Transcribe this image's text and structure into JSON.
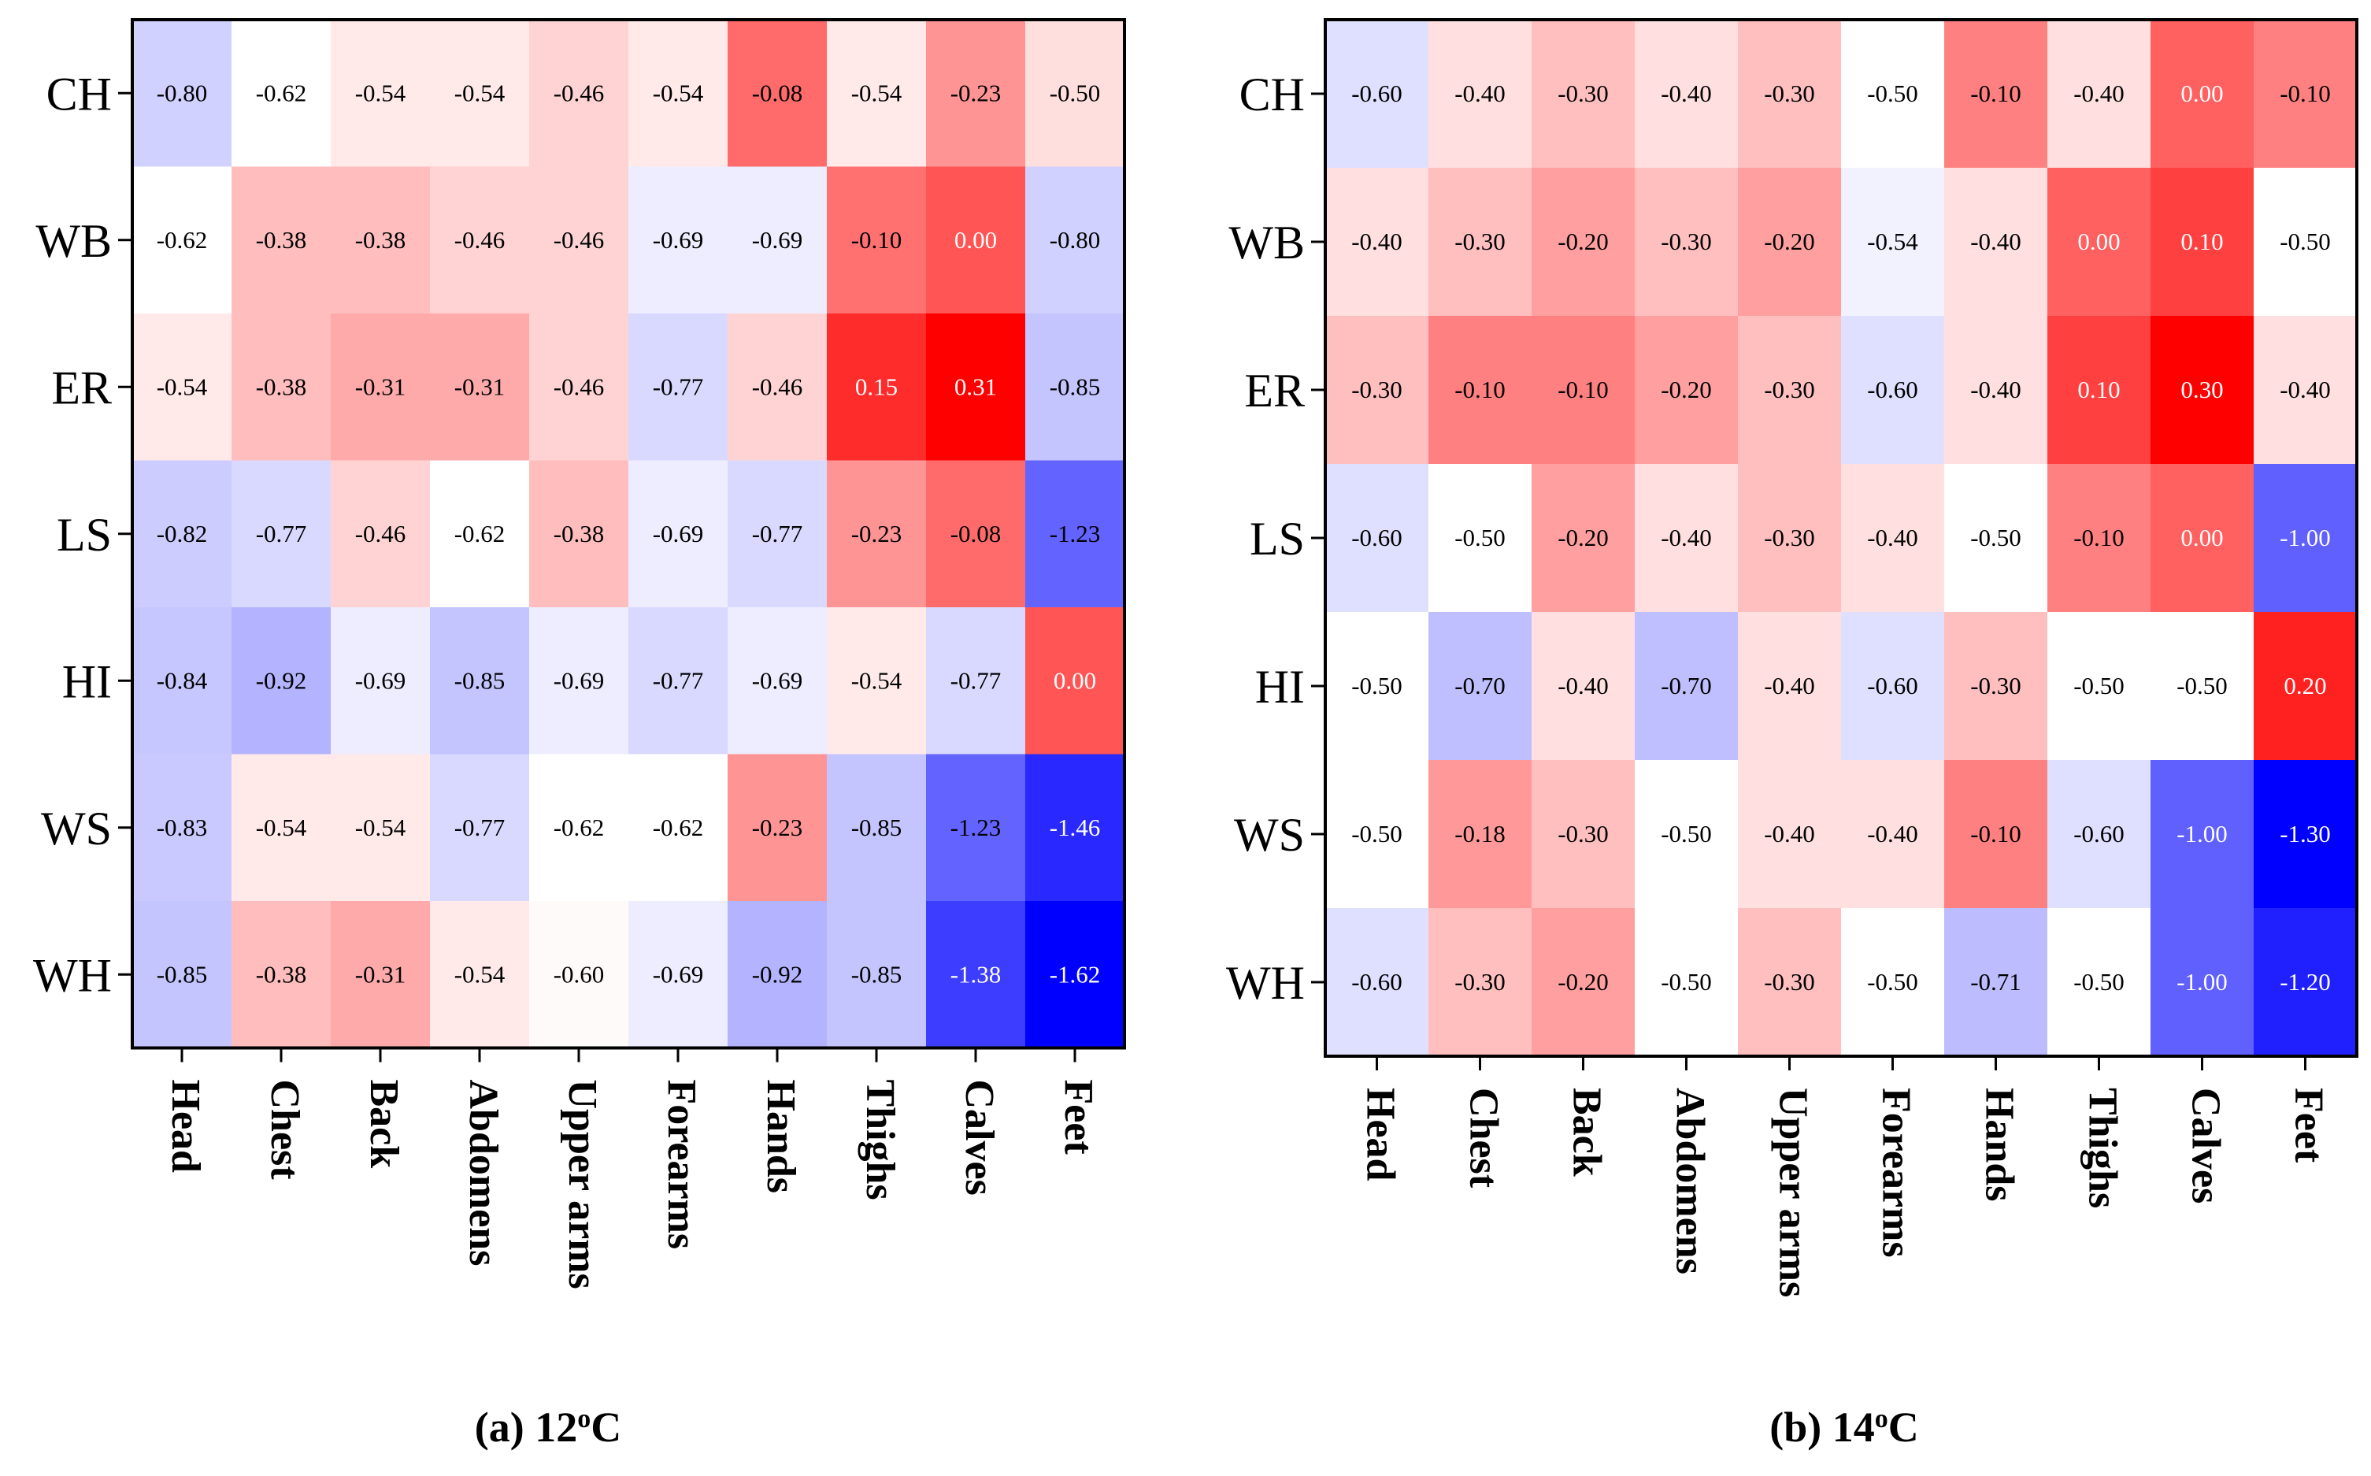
{
  "chart_data": [
    {
      "type": "heatmap",
      "title": "",
      "caption": {
        "prefix": "(a) 12",
        "sup": "o",
        "suffix": "C"
      },
      "rows": [
        "CH",
        "WB",
        "ER",
        "LS",
        "HI",
        "WS",
        "WH"
      ],
      "columns": [
        "Head",
        "Chest",
        "Back",
        "Abdomens",
        "Upper arms",
        "Forearms",
        "Hands",
        "Thighs",
        "Calves",
        "Feet"
      ],
      "values": [
        [
          -0.8,
          -0.62,
          -0.54,
          -0.54,
          -0.46,
          -0.54,
          -0.08,
          -0.54,
          -0.23,
          -0.5
        ],
        [
          -0.62,
          -0.38,
          -0.38,
          -0.46,
          -0.46,
          -0.69,
          -0.69,
          -0.1,
          0.0,
          -0.8
        ],
        [
          -0.54,
          -0.38,
          -0.31,
          -0.31,
          -0.46,
          -0.77,
          -0.46,
          0.15,
          0.31,
          -0.85
        ],
        [
          -0.82,
          -0.77,
          -0.46,
          -0.62,
          -0.38,
          -0.69,
          -0.77,
          -0.23,
          -0.08,
          -1.23
        ],
        [
          -0.84,
          -0.92,
          -0.69,
          -0.85,
          -0.69,
          -0.77,
          -0.69,
          -0.54,
          -0.77,
          0.0
        ],
        [
          -0.83,
          -0.54,
          -0.54,
          -0.77,
          -0.62,
          -0.62,
          -0.23,
          -0.85,
          -1.23,
          -1.46
        ],
        [
          -0.85,
          -0.38,
          -0.31,
          -0.54,
          -0.6,
          -0.69,
          -0.92,
          -0.85,
          -1.38,
          -1.62
        ]
      ],
      "labels": [
        [
          "-0.80",
          "-0.62",
          "-0.54",
          "-0.54",
          "-0.46",
          "-0.54",
          "-0.08",
          "-0.54",
          "-0.23",
          "-0.50"
        ],
        [
          "-0.62",
          "-0.38",
          "-0.38",
          "-0.46",
          "-0.46",
          "-0.69",
          "-0.69",
          "-0.10",
          "0.00",
          "-0.80"
        ],
        [
          "-0.54",
          "-0.38",
          "-0.31",
          "-0.31",
          "-0.46",
          "-0.77",
          "-0.46",
          "0.15",
          "0.31",
          "-0.85"
        ],
        [
          "-0.82",
          "-0.77",
          "-0.46",
          "-0.62",
          "-0.38",
          "-0.69",
          "-0.77",
          "-0.23",
          "-0.08",
          "-1.23"
        ],
        [
          "-0.84",
          "-0.92",
          "-0.69",
          "-0.85",
          "-0.69",
          "-0.77",
          "-0.69",
          "-0.54",
          "-0.77",
          "0.00"
        ],
        [
          "-0.83",
          "-0.54",
          "-0.54",
          "-0.77",
          "-0.62",
          "-0.62",
          "-0.23",
          "-0.85",
          "-1.23",
          "-1.46"
        ],
        [
          "-0.85",
          "-0.38",
          "-0.31",
          "-0.54",
          "-0.60",
          "-0.69",
          "-0.92",
          "-0.85",
          "-1.38",
          "-1.62"
        ]
      ],
      "color_scale": {
        "min": -1.62,
        "mid": -0.62,
        "max": 0.31
      }
    },
    {
      "type": "heatmap",
      "title": "",
      "caption": {
        "prefix": "(b) 14",
        "sup": "o",
        "suffix": "C"
      },
      "rows": [
        "CH",
        "WB",
        "ER",
        "LS",
        "HI",
        "WS",
        "WH"
      ],
      "columns": [
        "Head",
        "Chest",
        "Back",
        "Abdomens",
        "Upper arms",
        "Forearms",
        "Hands",
        "Thighs",
        "Calves",
        "Feet"
      ],
      "values": [
        [
          -0.6,
          -0.4,
          -0.3,
          -0.4,
          -0.3,
          -0.5,
          -0.1,
          -0.4,
          0.0,
          -0.1
        ],
        [
          -0.4,
          -0.3,
          -0.2,
          -0.3,
          -0.2,
          -0.54,
          -0.4,
          0.0,
          0.1,
          -0.5
        ],
        [
          -0.3,
          -0.1,
          -0.1,
          -0.2,
          -0.3,
          -0.6,
          -0.4,
          0.1,
          0.3,
          -0.4
        ],
        [
          -0.6,
          -0.5,
          -0.2,
          -0.4,
          -0.3,
          -0.4,
          -0.5,
          -0.1,
          0.0,
          -1.0
        ],
        [
          -0.5,
          -0.7,
          -0.4,
          -0.7,
          -0.4,
          -0.6,
          -0.3,
          -0.5,
          -0.5,
          0.2
        ],
        [
          -0.5,
          -0.18,
          -0.3,
          -0.5,
          -0.4,
          -0.4,
          -0.1,
          -0.6,
          -1.0,
          -1.3
        ],
        [
          -0.6,
          -0.3,
          -0.2,
          -0.5,
          -0.3,
          -0.5,
          -0.71,
          -0.5,
          -1.0,
          -1.2
        ]
      ],
      "labels": [
        [
          "-0.60",
          "-0.40",
          "-0.30",
          "-0.40",
          "-0.30",
          "-0.50",
          "-0.10",
          "-0.40",
          "0.00",
          "-0.10"
        ],
        [
          "-0.40",
          "-0.30",
          "-0.20",
          "-0.30",
          "-0.20",
          "-0.54",
          "-0.40",
          "0.00",
          "0.10",
          "-0.50"
        ],
        [
          "-0.30",
          "-0.10",
          "-0.10",
          "-0.20",
          "-0.30",
          "-0.60",
          "-0.40",
          "0.10",
          "0.30",
          "-0.40"
        ],
        [
          "-0.60",
          "-0.50",
          "-0.20",
          "-0.40",
          "-0.30",
          "-0.40",
          "-0.50",
          "-0.10",
          "0.00",
          "-1.00"
        ],
        [
          "-0.50",
          "-0.70",
          "-0.40",
          "-0.70",
          "-0.40",
          "-0.60",
          "-0.30",
          "-0.50",
          "-0.50",
          "0.20"
        ],
        [
          "-0.50",
          "-0.18",
          "-0.30",
          "-0.50",
          "-0.40",
          "-0.40",
          "-0.10",
          "-0.60",
          "-1.00",
          "-1.30"
        ],
        [
          "-0.60",
          "-0.30",
          "-0.20",
          "-0.50",
          "-0.30",
          "-0.50",
          "-0.71",
          "-0.50",
          "-1.00",
          "-1.20"
        ]
      ],
      "color_scale": {
        "min": -1.3,
        "mid": -0.5,
        "max": 0.3
      }
    }
  ],
  "colors": {
    "low": "#0000ff",
    "mid": "#ffffff",
    "high": "#ff0000",
    "text_dark": "#000000",
    "text_light": "#ffffff",
    "frame": "#000000"
  }
}
